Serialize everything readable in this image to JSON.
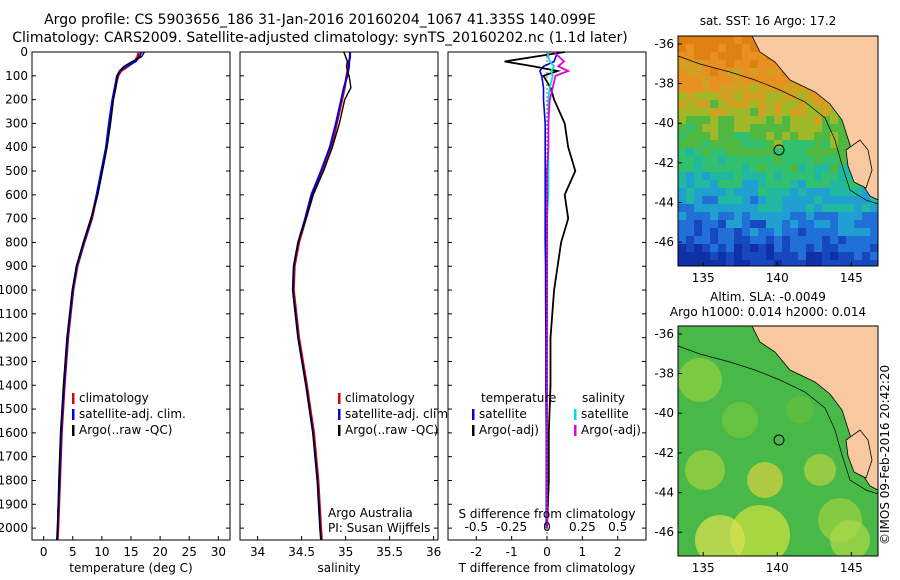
{
  "header": {
    "title_line1": "Argo profile: CS 5903656_186 31-Jan-2016 20160204_1067 41.335S 140.099E",
    "title_line2": "Climatology: CARS2009. Satellite-adjusted climatology: synTS_20160202.nc (1.1d later)"
  },
  "stamp": "©IMOS 09-Feb-2016 20:42:20",
  "colors": {
    "climatology": "#e00000",
    "satellite": "#0000e0",
    "argo": "#000000",
    "sat_salinity": "#00e0e0",
    "argo_salinity": "#e000e0",
    "land": "#f8c8a0"
  },
  "chart_data": [
    {
      "type": "line",
      "panel": "temperature",
      "xlabel": "temperature (deg C)",
      "ylim": [
        2050,
        0
      ],
      "xlim": [
        -2,
        32
      ],
      "x_ticks": [
        "0",
        "5",
        "10",
        "15",
        "20",
        "25",
        "30"
      ],
      "y_ticks": [
        "0",
        "100",
        "200",
        "300",
        "400",
        "500",
        "600",
        "700",
        "800",
        "900",
        "1000",
        "1100",
        "1200",
        "1300",
        "1400",
        "1500",
        "1600",
        "1700",
        "1800",
        "1900",
        "2000"
      ],
      "legend": [
        "climatology",
        "satellite-adj. clim.",
        "Argo(..raw -QC)"
      ],
      "depth": [
        0,
        20,
        40,
        60,
        80,
        100,
        150,
        200,
        300,
        400,
        500,
        600,
        700,
        800,
        900,
        1000,
        1200,
        1400,
        1600,
        1800,
        2000,
        2050
      ],
      "series": [
        {
          "name": "climatology",
          "values": [
            16.3,
            16.1,
            15.6,
            14.5,
            13.3,
            12.8,
            12.3,
            11.9,
            11.3,
            10.8,
            10.0,
            9.2,
            8.3,
            7.0,
            5.8,
            5.1,
            4.2,
            3.6,
            3.1,
            2.8,
            2.5,
            2.4
          ]
        },
        {
          "name": "satellite-adj. clim.",
          "values": [
            16.8,
            16.4,
            15.8,
            14.2,
            13.1,
            12.6,
            12.2,
            11.8,
            11.2,
            10.7,
            9.9,
            9.1,
            8.2,
            6.9,
            5.7,
            5.0,
            4.1,
            3.5,
            3.0,
            2.7,
            2.4,
            2.3
          ]
        },
        {
          "name": "Argo(..raw -QC)",
          "values": [
            17.3,
            16.8,
            15.2,
            13.8,
            13.0,
            12.7,
            12.4,
            12.0,
            11.5,
            10.9,
            10.1,
            9.3,
            8.1,
            6.8,
            5.6,
            4.9,
            4.0,
            3.4,
            2.9,
            2.6,
            2.4,
            2.3
          ]
        }
      ]
    },
    {
      "type": "line",
      "panel": "salinity",
      "xlabel": "salinity",
      "ylim": [
        2050,
        0
      ],
      "xlim": [
        33.8,
        36.05
      ],
      "x_ticks": [
        "34",
        "34.5",
        "35",
        "35.5",
        "36"
      ],
      "legend": [
        "climatology",
        "satellite-adj. clim.",
        "Argo(..raw -QC)"
      ],
      "annotation_lines": [
        "Argo Australia",
        "PI: Susan Wijffels"
      ],
      "depth": [
        0,
        20,
        40,
        60,
        80,
        100,
        150,
        200,
        300,
        400,
        500,
        600,
        700,
        800,
        900,
        1000,
        1200,
        1400,
        1600,
        1800,
        2000,
        2050
      ],
      "series": [
        {
          "name": "climatology",
          "values": [
            35.05,
            35.05,
            35.04,
            35.03,
            35.02,
            35.01,
            34.99,
            34.96,
            34.9,
            34.84,
            34.74,
            34.63,
            34.55,
            34.47,
            34.42,
            34.41,
            34.47,
            34.56,
            34.64,
            34.69,
            34.72,
            34.73
          ]
        },
        {
          "name": "satellite-adj. clim.",
          "values": [
            35.05,
            35.05,
            35.04,
            35.04,
            35.03,
            35.02,
            34.98,
            34.95,
            34.89,
            34.82,
            34.72,
            34.61,
            34.54,
            34.46,
            34.41,
            34.4,
            34.46,
            34.55,
            34.63,
            34.68,
            34.71,
            34.72
          ]
        },
        {
          "name": "Argo(..raw -QC)",
          "values": [
            34.98,
            35.0,
            35.02,
            35.01,
            35.02,
            35.04,
            35.06,
            34.99,
            34.93,
            34.85,
            34.75,
            34.63,
            34.55,
            34.46,
            34.41,
            34.4,
            34.46,
            34.55,
            34.63,
            34.68,
            34.71,
            34.72
          ]
        }
      ]
    },
    {
      "type": "line",
      "panel": "difference",
      "xlabel": "T difference from climatology",
      "xlabel_top": "S difference from climatology",
      "ylim": [
        2050,
        0
      ],
      "xlim": [
        -2.8,
        2.8
      ],
      "x_ticks": [
        "-2",
        "-1",
        "0",
        "1",
        "2"
      ],
      "x_ticks_top": [
        "-0.5",
        "-0.25",
        "0",
        "0.25",
        "0.5"
      ],
      "legend_left_title": "temperature",
      "legend_left": [
        "satellite",
        "Argo(-adj)"
      ],
      "legend_right_title": "salinity",
      "legend_right": [
        "satellite",
        "Argo(-adj)"
      ],
      "depth": [
        0,
        40,
        60,
        80,
        100,
        150,
        200,
        300,
        400,
        500,
        600,
        700,
        800,
        900,
        1000,
        1200,
        1400,
        1600,
        1800,
        2000
      ],
      "series": [
        {
          "name": "temperature satellite",
          "values": [
            0.3,
            0.2,
            -0.1,
            -0.2,
            -0.15,
            -0.1,
            -0.1,
            -0.05,
            -0.05,
            -0.05,
            -0.05,
            -0.05,
            -0.05,
            -0.04,
            -0.04,
            -0.03,
            -0.03,
            -0.02,
            -0.02,
            -0.02
          ]
        },
        {
          "name": "temperature Argo(-adj)",
          "values": [
            0.5,
            -1.2,
            -0.4,
            0.3,
            -0.1,
            0.1,
            0.2,
            0.5,
            0.6,
            0.8,
            0.5,
            0.6,
            0.4,
            0.3,
            0.2,
            0.1,
            0.1,
            0.05,
            0.05,
            0.0
          ]
        },
        {
          "name": "salinity satellite",
          "values": [
            0.0,
            0.02,
            0.05,
            0.03,
            0.04,
            0.02,
            0.01,
            0.01,
            0.01,
            0.01,
            0.01,
            0.0,
            0.0,
            0.0,
            0.0,
            0.0,
            0.0,
            0.0,
            0.0,
            0.0
          ]
        },
        {
          "name": "salinity Argo(-adj)",
          "values": [
            0.05,
            0.12,
            0.08,
            0.15,
            0.06,
            0.04,
            0.02,
            0.01,
            0.01,
            0.0,
            0.0,
            0.0,
            0.0,
            0.0,
            0.0,
            0.0,
            0.0,
            0.0,
            0.0,
            0.0
          ]
        }
      ]
    },
    {
      "type": "heatmap",
      "panel": "sst-map",
      "title": "sat. SST: 16  Argo: 17.2",
      "x_ticks": [
        "135",
        "140",
        "145"
      ],
      "y_ticks": [
        "-36",
        "-38",
        "-40",
        "-42",
        "-44",
        "-46"
      ],
      "xlim": [
        133.3,
        146.8
      ],
      "ylim": [
        -47.2,
        -35.6
      ],
      "marker": {
        "lon": 140.099,
        "lat": -41.335
      }
    },
    {
      "type": "heatmap",
      "panel": "sla-map",
      "title_line1": "Altim. SLA: -0.0049",
      "title_line2": "Argo h1000: 0.014 h2000: 0.014",
      "x_ticks": [
        "135",
        "140",
        "145"
      ],
      "y_ticks": [
        "-36",
        "-38",
        "-40",
        "-42",
        "-44",
        "-46"
      ],
      "xlim": [
        133.3,
        146.8
      ],
      "ylim": [
        -47.2,
        -35.6
      ],
      "marker": {
        "lon": 140.099,
        "lat": -41.335
      }
    }
  ]
}
